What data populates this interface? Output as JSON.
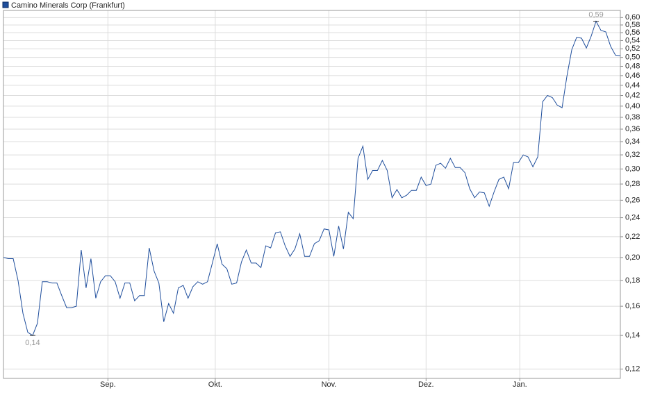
{
  "chart_data": {
    "type": "line",
    "log_scale": true,
    "grid": true,
    "series": [
      {
        "name": "Camino Minerals Corp (Frankfurt)",
        "color": "#1f4e9c",
        "values": [
          0.2,
          0.199,
          0.199,
          0.18,
          0.155,
          0.142,
          0.14,
          0.148,
          0.179,
          0.179,
          0.178,
          0.178,
          0.168,
          0.159,
          0.159,
          0.16,
          0.207,
          0.174,
          0.199,
          0.166,
          0.179,
          0.184,
          0.184,
          0.179,
          0.166,
          0.178,
          0.178,
          0.164,
          0.168,
          0.168,
          0.209,
          0.188,
          0.178,
          0.149,
          0.162,
          0.155,
          0.174,
          0.176,
          0.166,
          0.175,
          0.179,
          0.177,
          0.179,
          0.195,
          0.213,
          0.194,
          0.19,
          0.177,
          0.178,
          0.196,
          0.207,
          0.195,
          0.195,
          0.191,
          0.211,
          0.209,
          0.224,
          0.225,
          0.211,
          0.201,
          0.208,
          0.223,
          0.201,
          0.201,
          0.213,
          0.216,
          0.228,
          0.227,
          0.201,
          0.231,
          0.208,
          0.246,
          0.239,
          0.315,
          0.333,
          0.286,
          0.298,
          0.298,
          0.312,
          0.298,
          0.263,
          0.273,
          0.263,
          0.266,
          0.272,
          0.272,
          0.289,
          0.278,
          0.28,
          0.305,
          0.308,
          0.301,
          0.315,
          0.302,
          0.302,
          0.295,
          0.274,
          0.263,
          0.27,
          0.269,
          0.253,
          0.27,
          0.286,
          0.289,
          0.274,
          0.309,
          0.309,
          0.32,
          0.317,
          0.303,
          0.317,
          0.408,
          0.42,
          0.416,
          0.402,
          0.397,
          0.459,
          0.518,
          0.548,
          0.546,
          0.522,
          0.551,
          0.59,
          0.566,
          0.562,
          0.526,
          0.505,
          0.504
        ]
      }
    ],
    "xticks": [
      {
        "value": 21.5,
        "label": "Sep."
      },
      {
        "value": 43.6,
        "label": "Okt."
      },
      {
        "value": 67,
        "label": "Nov."
      },
      {
        "value": 87,
        "label": "Dez."
      },
      {
        "value": 106.3,
        "label": "Jan."
      }
    ],
    "ylim": [
      0.115,
      0.62
    ],
    "yticks": [
      {
        "value": 0.12,
        "label": "0,12"
      },
      {
        "value": 0.14,
        "label": "0,14"
      },
      {
        "value": 0.16,
        "label": "0,16"
      },
      {
        "value": 0.18,
        "label": "0,18"
      },
      {
        "value": 0.2,
        "label": "0,20"
      },
      {
        "value": 0.22,
        "label": "0,22"
      },
      {
        "value": 0.24,
        "label": "0,24"
      },
      {
        "value": 0.26,
        "label": "0,26"
      },
      {
        "value": 0.28,
        "label": "0,28"
      },
      {
        "value": 0.3,
        "label": "0,30"
      },
      {
        "value": 0.32,
        "label": "0,32"
      },
      {
        "value": 0.34,
        "label": "0,34"
      },
      {
        "value": 0.36,
        "label": "0,36"
      },
      {
        "value": 0.38,
        "label": "0,38"
      },
      {
        "value": 0.4,
        "label": "0,40"
      },
      {
        "value": 0.42,
        "label": "0,42"
      },
      {
        "value": 0.44,
        "label": "0,44"
      },
      {
        "value": 0.46,
        "label": "0,46"
      },
      {
        "value": 0.48,
        "label": "0,48"
      },
      {
        "value": 0.5,
        "label": "0,50"
      },
      {
        "value": 0.52,
        "label": "0,52"
      },
      {
        "value": 0.54,
        "label": "0,54"
      },
      {
        "value": 0.56,
        "label": "0,56"
      },
      {
        "value": 0.58,
        "label": "0,58"
      },
      {
        "value": 0.6,
        "label": "0,60"
      }
    ],
    "annotations": [
      {
        "text": "0,59",
        "value": 0.59
      },
      {
        "text": "0,14",
        "value": 0.14
      }
    ]
  }
}
